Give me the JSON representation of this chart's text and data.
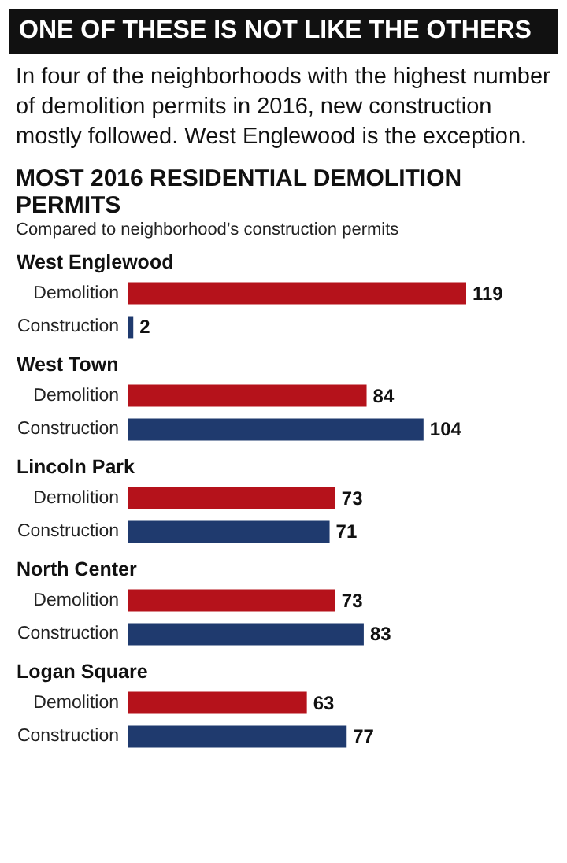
{
  "chart_data": {
    "type": "bar",
    "orientation": "horizontal",
    "title": "ONE OF THESE IS NOT LIKE THE OTHERS",
    "subtitle": "In four of the neighborhoods with the highest number of demolition permits in 2016, new construction mostly followed. West Englewood is the exception.",
    "annotations": [
      "MOST 2016 RESIDENTIAL DEMOLITION PERMITS",
      "Compared to neighborhood’s construction permits"
    ],
    "categories": [
      "West Englewood",
      "West Town",
      "Lincoln Park",
      "North Center",
      "Logan Square"
    ],
    "series": [
      {
        "name": "Demolition",
        "color": "#b5121b",
        "values": [
          119,
          84,
          73,
          73,
          63
        ]
      },
      {
        "name": "Construction",
        "color": "#1f3a6e",
        "values": [
          2,
          104,
          71,
          83,
          77
        ]
      }
    ],
    "data_labels": true
  }
}
